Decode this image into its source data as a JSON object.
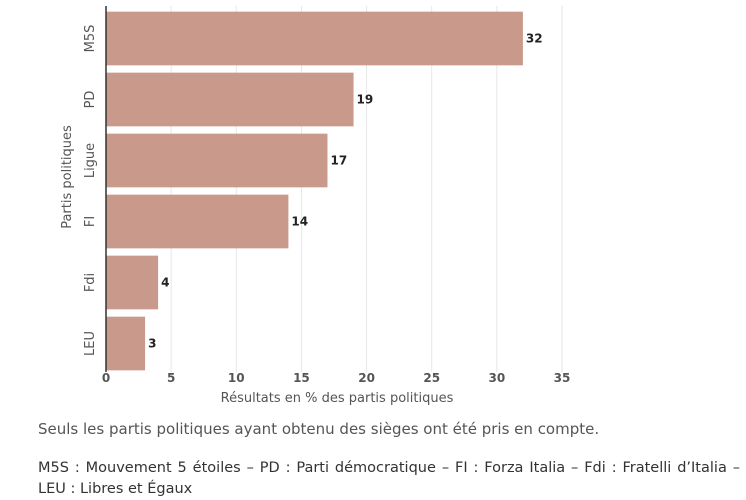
{
  "chart_data": {
    "type": "bar",
    "orientation": "horizontal",
    "categories": [
      "M5S",
      "PD",
      "Ligue",
      "FI",
      "Fdi",
      "LEU"
    ],
    "values": [
      32,
      19,
      17,
      14,
      4,
      3
    ],
    "xlabel": "Résultats en % des partis politiques",
    "ylabel": "Partis politiques",
    "xlim": [
      0,
      35
    ],
    "xticks": [
      0,
      5,
      10,
      15,
      20,
      25,
      30,
      35
    ],
    "grid": true,
    "bar_color": "#c99a8b"
  },
  "note": "Seuls les partis politiques ayant obtenu des sièges ont été pris en compte.",
  "legend": "M5S : Mouvement 5 étoiles – PD : Parti démocratique – FI : Forza Italia – Fdi : Fratelli d’Italia – LEU : Libres et Égaux"
}
